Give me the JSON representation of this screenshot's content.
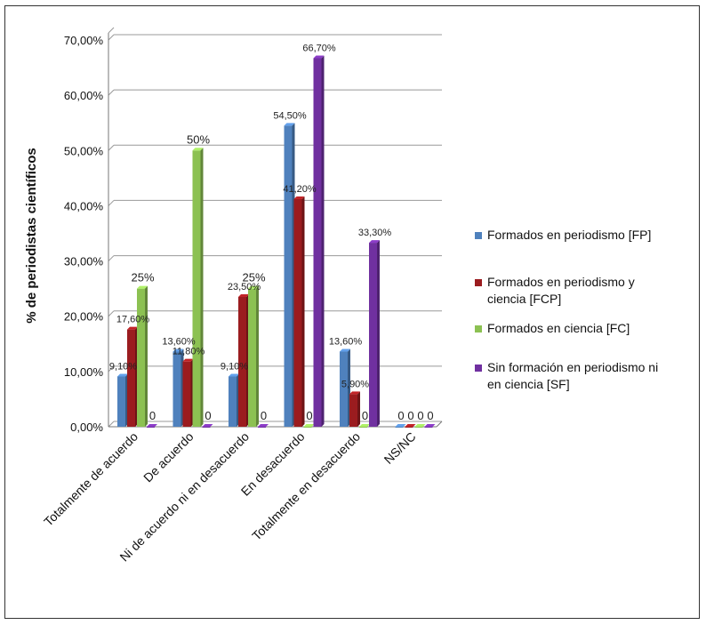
{
  "chart_data": {
    "type": "bar",
    "ylabel": "% de periodistas científicos",
    "ylim": [
      0,
      70
    ],
    "y_ticks": [
      "0,00%",
      "10,00%",
      "20,00%",
      "30,00%",
      "40,00%",
      "50,00%",
      "60,00%",
      "70,00%"
    ],
    "grid": true,
    "legend_position": "right",
    "categories": [
      "Totalmente de acuerdo",
      "De acuerdo",
      "Ni de acuerdo ni en desacuerdo",
      "En desacuerdo",
      "Totalmente en desacuerdo",
      "NS/NC"
    ],
    "series": [
      {
        "name": "Formados en periodismo [FP]",
        "color": "#4f81bd",
        "values": [
          9.1,
          13.6,
          9.1,
          54.5,
          13.6,
          0
        ],
        "labels": [
          "9,10%",
          "13,60%",
          "9,10%",
          "54,50%",
          "13,60%",
          "0"
        ]
      },
      {
        "name": "Formados en periodismo y ciencia [FCP]",
        "color": "#9b1c1f",
        "values": [
          17.6,
          11.8,
          23.5,
          41.2,
          5.9,
          0
        ],
        "labels": [
          "17,60%",
          "11,80%",
          "23,50%",
          "41,20%",
          "5,90%",
          "0"
        ]
      },
      {
        "name": "Formados en ciencia [FC]",
        "color": "#8cc152",
        "values": [
          25,
          50,
          25,
          0,
          0,
          0
        ],
        "labels": [
          "25%",
          "50%",
          "25%",
          "0",
          "0",
          "0"
        ]
      },
      {
        "name": "Sin formación en periodismo ni en ciencia [SF]",
        "color": "#7030a0",
        "values": [
          0,
          0,
          0,
          66.7,
          33.3,
          0
        ],
        "labels": [
          "0",
          "0",
          "0",
          "66,70%",
          "33,30%",
          "0"
        ]
      }
    ]
  },
  "legend": {
    "fp": "Formados en periodismo [FP]",
    "fcp_1": "Formados en periodismo y",
    "fcp_2": "ciencia [FCP]",
    "fc": "Formados en ciencia [FC]",
    "sf_1": "Sin formación en periodismo ni",
    "sf_2": "en ciencia [SF]"
  }
}
